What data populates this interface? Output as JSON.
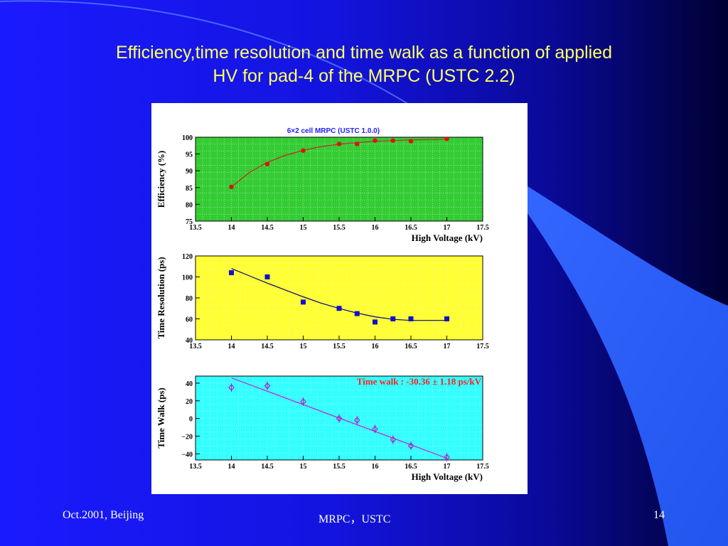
{
  "slide": {
    "title_line1": "Efficiency,time resolution and time walk as a function of applied",
    "title_line2": "HV for pad-4 of the MRPC (USTC 2.2)",
    "footer_left": "Oct.2001, Beijing",
    "footer_center": "MRPC，USTC",
    "page_number": "14",
    "title_color": "#ffff66",
    "background_color": "#1414e0"
  },
  "chart_data": [
    {
      "type": "scatter",
      "title": "6×2 cell MRPC (USTC 1.0.0)",
      "xlabel": "High Voltage (kV)",
      "ylabel": "Efficiency (%)",
      "xlim": [
        13.5,
        17.5
      ],
      "ylim": [
        75,
        100
      ],
      "xticks": [
        13.5,
        14,
        14.5,
        15,
        15.5,
        16,
        16.5,
        17,
        17.5
      ],
      "xtick_labels": [
        "13.5",
        "14",
        "14.5",
        "15",
        "15.5",
        "16",
        "16.5",
        "17",
        "17.5"
      ],
      "yticks": [
        75,
        80,
        85,
        90,
        95,
        100
      ],
      "ytick_labels": [
        "75",
        "80",
        "85",
        "90",
        "95",
        "100"
      ],
      "background": "#33cc33",
      "marker": "circle",
      "marker_color": "#dd1111",
      "fit_color": "#cc2222",
      "grid": true,
      "series": [
        {
          "x": [
            14,
            14.5,
            15,
            15.5,
            15.75,
            16,
            16.25,
            16.5,
            17
          ],
          "y": [
            85.2,
            92,
            96,
            98,
            98,
            99,
            99,
            98.8,
            99.5
          ]
        }
      ],
      "fit": {
        "x": [
          14,
          14.25,
          14.5,
          14.75,
          15,
          15.25,
          15.5,
          15.75,
          16,
          16.25,
          16.5,
          16.75,
          17
        ],
        "y": [
          85.2,
          89.5,
          92.5,
          94.6,
          96.1,
          97.2,
          97.9,
          98.4,
          98.8,
          99.0,
          99.2,
          99.3,
          99.4
        ]
      }
    },
    {
      "type": "scatter",
      "xlabel": "",
      "ylabel": "Time Resolution (ps)",
      "xlim": [
        13.5,
        17.5
      ],
      "ylim": [
        40,
        120
      ],
      "xticks": [
        13.5,
        14,
        14.5,
        15,
        15.5,
        16,
        16.5,
        17,
        17.5
      ],
      "xtick_labels": [
        "13.5",
        "14",
        "14.5",
        "15",
        "15.5",
        "16",
        "16.5",
        "17",
        "17.5"
      ],
      "yticks": [
        40,
        60,
        80,
        100,
        120
      ],
      "ytick_labels": [
        "40",
        "60",
        "80",
        "100",
        "120"
      ],
      "background": "#ffff33",
      "marker": "square",
      "marker_color": "#1111cc",
      "fit_color": "#000080",
      "grid": true,
      "series": [
        {
          "x": [
            14,
            14.5,
            15,
            15.5,
            15.75,
            16,
            16.25,
            16.5,
            17
          ],
          "y": [
            104,
            100,
            76,
            70,
            65,
            57,
            60,
            60,
            60
          ]
        }
      ],
      "fit": {
        "x": [
          14,
          14.25,
          14.5,
          14.75,
          15,
          15.25,
          15.5,
          15.75,
          16,
          16.25,
          16.5,
          16.75,
          17
        ],
        "y": [
          108,
          101,
          94,
          87.5,
          81,
          75,
          70,
          65.5,
          62,
          59.5,
          58.5,
          58.5,
          58.5
        ]
      }
    },
    {
      "type": "scatter",
      "xlabel": "High Voltage (kV)",
      "ylabel": "Time Walk (ps)",
      "annotation": "Time walk : -30.36 ± 1.18 ps/kV",
      "xlim": [
        13.5,
        17.5
      ],
      "ylim": [
        -47,
        48
      ],
      "xticks": [
        13.5,
        14,
        14.5,
        15,
        15.5,
        16,
        16.5,
        17,
        17.5
      ],
      "xtick_labels": [
        "13.5",
        "14",
        "14.5",
        "15",
        "15.5",
        "16",
        "16.5",
        "17",
        "17.5"
      ],
      "yticks": [
        -40,
        -20,
        0,
        20,
        40
      ],
      "ytick_labels": [
        "−40",
        "−20",
        "0",
        "20",
        "40"
      ],
      "background": "#33ffff",
      "marker": "open-diamond",
      "marker_color": "#aa22cc",
      "fit_color": "#cc22cc",
      "grid": true,
      "series": [
        {
          "x": [
            14,
            14.5,
            15,
            15.5,
            15.75,
            16,
            16.25,
            16.5,
            17
          ],
          "y": [
            35,
            37,
            19,
            0,
            -2,
            -12,
            -24,
            -31,
            -44
          ]
        }
      ],
      "fit": {
        "x": [
          14,
          17
        ],
        "y": [
          46,
          -45
        ]
      }
    }
  ]
}
